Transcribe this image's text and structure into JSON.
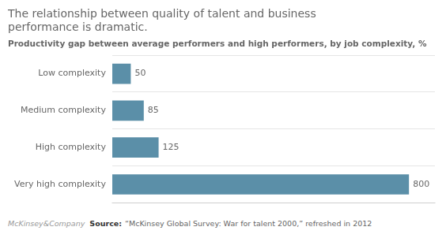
{
  "chart_data": {
    "type": "bar",
    "orientation": "horizontal",
    "title": [
      "The relationship between quality of talent and business",
      "performance is dramatic."
    ],
    "subtitle": "Productivity gap between average performers and high performers, by job complexity, %",
    "categories": [
      "Low complexity",
      "Medium complexity",
      "High complexity",
      "Very high complexity"
    ],
    "values": [
      50,
      85,
      125,
      800
    ],
    "color": "#5b8fa8",
    "xlim": [
      0,
      870
    ],
    "tick_labels": "y",
    "grid": true,
    "data_labels": true,
    "annotations": [
      "McKinsey&Company",
      "Source:",
      "“McKinsey Global Survey: War for talent 2000,” refreshed in 2012"
    ]
  }
}
